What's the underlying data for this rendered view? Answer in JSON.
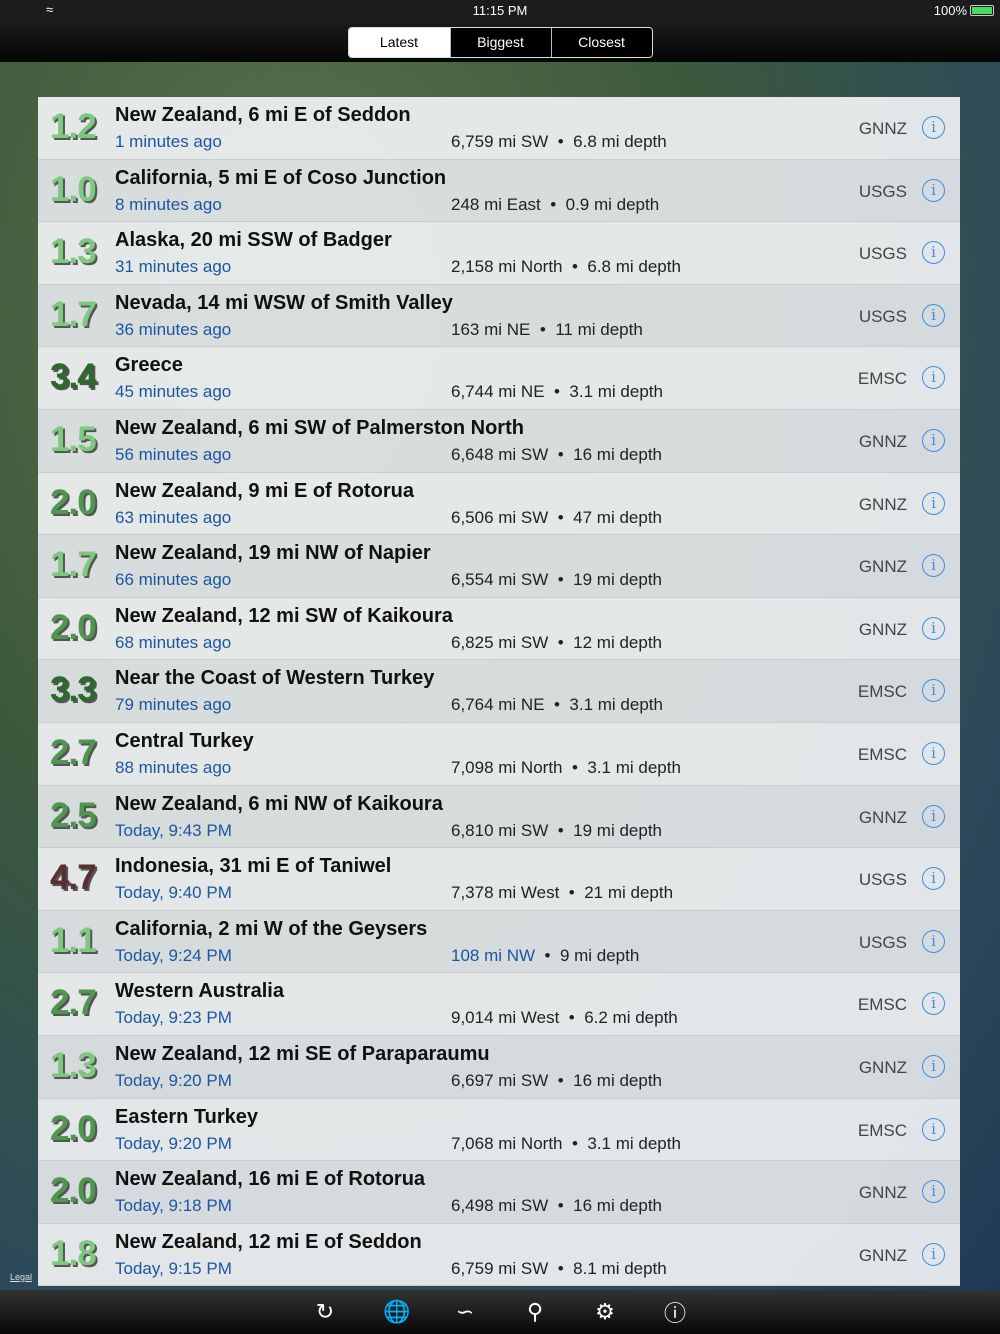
{
  "status": {
    "time": "11:15 PM",
    "battery": "100%"
  },
  "tabs": [
    "Latest",
    "Biggest",
    "Closest"
  ],
  "map": {
    "legal": "Legal"
  },
  "colors": {
    "mag_low": "#7fc87f",
    "mag_2": "#4f974f",
    "mag_3": "#2a6a2a",
    "mag_4": "#5a2f2f",
    "link": "#1d56a0",
    "info": "#3a8ee6"
  },
  "quakes": [
    {
      "mag": "1.2",
      "place": "New Zealand, 6 mi E of Seddon",
      "time": "1 minutes ago",
      "dist": "6,759 mi SW",
      "depth": "6.8 mi depth",
      "src": "GNNZ"
    },
    {
      "mag": "1.0",
      "place": "California, 5 mi E of Coso Junction",
      "time": "8 minutes ago",
      "dist": "248 mi East",
      "depth": "0.9 mi depth",
      "src": "USGS"
    },
    {
      "mag": "1.3",
      "place": "Alaska, 20 mi SSW of Badger",
      "time": "31 minutes ago",
      "dist": "2,158 mi North",
      "depth": "6.8 mi depth",
      "src": "USGS"
    },
    {
      "mag": "1.7",
      "place": "Nevada, 14 mi WSW of Smith Valley",
      "time": "36 minutes ago",
      "dist": "163 mi NE",
      "depth": "11 mi depth",
      "src": "USGS"
    },
    {
      "mag": "3.4",
      "place": "Greece",
      "time": "45 minutes ago",
      "dist": "6,744 mi NE",
      "depth": "3.1 mi depth",
      "src": "EMSC"
    },
    {
      "mag": "1.5",
      "place": "New Zealand, 6 mi SW of Palmerston North",
      "time": "56 minutes ago",
      "dist": "6,648 mi SW",
      "depth": "16 mi depth",
      "src": "GNNZ"
    },
    {
      "mag": "2.0",
      "place": "New Zealand, 9 mi E of Rotorua",
      "time": "63 minutes ago",
      "dist": "6,506 mi SW",
      "depth": "47 mi depth",
      "src": "GNNZ"
    },
    {
      "mag": "1.7",
      "place": "New Zealand, 19 mi NW of Napier",
      "time": "66 minutes ago",
      "dist": "6,554 mi SW",
      "depth": "19 mi depth",
      "src": "GNNZ"
    },
    {
      "mag": "2.0",
      "place": "New Zealand, 12 mi SW of Kaikoura",
      "time": "68 minutes ago",
      "dist": "6,825 mi SW",
      "depth": "12 mi depth",
      "src": "GNNZ"
    },
    {
      "mag": "3.3",
      "place": "Near the Coast of Western Turkey",
      "time": "79 minutes ago",
      "dist": "6,764 mi NE",
      "depth": "3.1 mi depth",
      "src": "EMSC"
    },
    {
      "mag": "2.7",
      "place": "Central Turkey",
      "time": "88 minutes ago",
      "dist": "7,098 mi North",
      "depth": "3.1 mi depth",
      "src": "EMSC"
    },
    {
      "mag": "2.5",
      "place": "New Zealand, 6 mi NW of Kaikoura",
      "time": "Today, 9:43 PM",
      "dist": "6,810 mi SW",
      "depth": "19 mi depth",
      "src": "GNNZ"
    },
    {
      "mag": "4.7",
      "place": "Indonesia, 31 mi E of Taniwel",
      "time": "Today, 9:40 PM",
      "dist": "7,378 mi West",
      "depth": "21 mi depth",
      "src": "USGS"
    },
    {
      "mag": "1.1",
      "place": "California, 2 mi W of the Geysers",
      "time": "Today, 9:24 PM",
      "dist": "108 mi NW",
      "depth": "9 mi depth",
      "src": "USGS",
      "near": true
    },
    {
      "mag": "2.7",
      "place": "Western Australia",
      "time": "Today, 9:23 PM",
      "dist": "9,014 mi West",
      "depth": "6.2 mi depth",
      "src": "EMSC"
    },
    {
      "mag": "1.3",
      "place": "New Zealand, 12 mi SE of Paraparaumu",
      "time": "Today, 9:20 PM",
      "dist": "6,697 mi SW",
      "depth": "16 mi depth",
      "src": "GNNZ"
    },
    {
      "mag": "2.0",
      "place": "Eastern Turkey",
      "time": "Today, 9:20 PM",
      "dist": "7,068 mi North",
      "depth": "3.1 mi depth",
      "src": "EMSC"
    },
    {
      "mag": "2.0",
      "place": "New Zealand, 16 mi E of Rotorua",
      "time": "Today, 9:18 PM",
      "dist": "6,498 mi SW",
      "depth": "16 mi depth",
      "src": "GNNZ"
    },
    {
      "mag": "1.8",
      "place": "New Zealand, 12 mi E of Seddon",
      "time": "Today, 9:15 PM",
      "dist": "6,759 mi SW",
      "depth": "8.1 mi depth",
      "src": "GNNZ"
    }
  ],
  "toolbar": [
    "refresh-icon",
    "globe-icon",
    "tsunami-icon",
    "globe-location-icon",
    "gear-icon",
    "info-icon"
  ]
}
